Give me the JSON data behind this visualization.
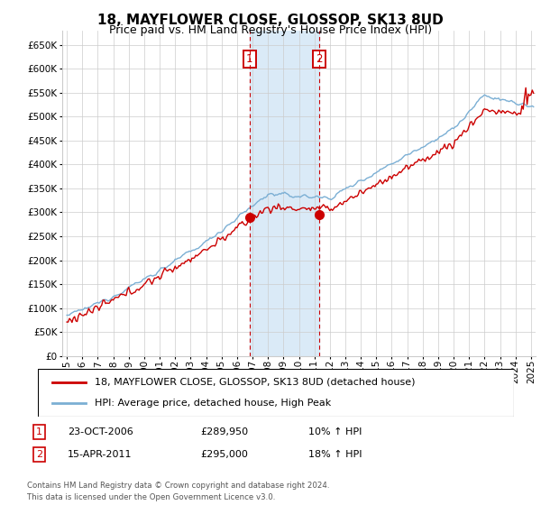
{
  "title": "18, MAYFLOWER CLOSE, GLOSSOP, SK13 8UD",
  "subtitle": "Price paid vs. HM Land Registry's House Price Index (HPI)",
  "ylim": [
    0,
    680000
  ],
  "yticks": [
    0,
    50000,
    100000,
    150000,
    200000,
    250000,
    300000,
    350000,
    400000,
    450000,
    500000,
    550000,
    600000,
    650000
  ],
  "xlim_start": 1994.7,
  "xlim_end": 2025.3,
  "purchase1_x": 2006.81,
  "purchase1_y": 289950,
  "purchase2_x": 2011.29,
  "purchase2_y": 295000,
  "purchase1_date": "23-OCT-2006",
  "purchase1_price": "£289,950",
  "purchase1_hpi": "10% ↑ HPI",
  "purchase2_date": "15-APR-2011",
  "purchase2_price": "£295,000",
  "purchase2_hpi": "18% ↑ HPI",
  "line1_color": "#cc0000",
  "line2_color": "#7bafd4",
  "shade_color": "#daeaf7",
  "grid_color": "#cccccc",
  "background_color": "#ffffff",
  "legend_line1": "18, MAYFLOWER CLOSE, GLOSSOP, SK13 8UD (detached house)",
  "legend_line2": "HPI: Average price, detached house, High Peak",
  "footnote": "Contains HM Land Registry data © Crown copyright and database right 2024.\nThis data is licensed under the Open Government Licence v3.0.",
  "title_fontsize": 11,
  "subtitle_fontsize": 9,
  "tick_fontsize": 7.5,
  "legend_fontsize": 8
}
